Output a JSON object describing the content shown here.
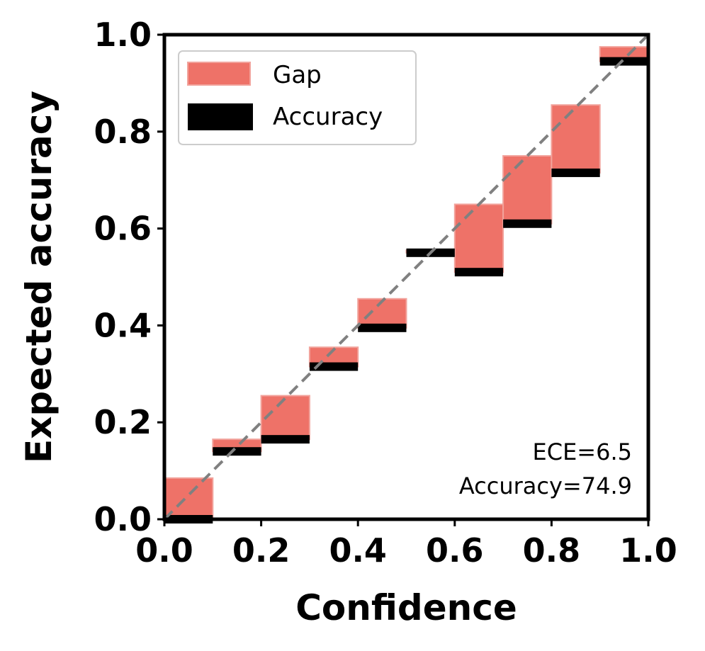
{
  "chart_data": {
    "type": "bar",
    "title": "",
    "xlabel": "Confidence",
    "ylabel": "Expected accuracy",
    "xlim": [
      0,
      1
    ],
    "ylim": [
      0,
      1
    ],
    "xticks": [
      "0.0",
      "0.2",
      "0.4",
      "0.6",
      "0.8",
      "1.0"
    ],
    "yticks": [
      "0.0",
      "0.2",
      "0.4",
      "0.6",
      "0.8",
      "1.0"
    ],
    "bins": [
      {
        "x_start": 0.0,
        "x_end": 0.1,
        "expected": 0.085,
        "accuracy": 0.0
      },
      {
        "x_start": 0.1,
        "x_end": 0.2,
        "expected": 0.165,
        "accuracy": 0.14
      },
      {
        "x_start": 0.2,
        "x_end": 0.3,
        "expected": 0.255,
        "accuracy": 0.165
      },
      {
        "x_start": 0.3,
        "x_end": 0.4,
        "expected": 0.355,
        "accuracy": 0.315
      },
      {
        "x_start": 0.4,
        "x_end": 0.5,
        "expected": 0.455,
        "accuracy": 0.395
      },
      {
        "x_start": 0.5,
        "x_end": 0.6,
        "expected": 0.555,
        "accuracy": 0.55
      },
      {
        "x_start": 0.6,
        "x_end": 0.7,
        "expected": 0.65,
        "accuracy": 0.51
      },
      {
        "x_start": 0.7,
        "x_end": 0.8,
        "expected": 0.75,
        "accuracy": 0.61
      },
      {
        "x_start": 0.8,
        "x_end": 0.9,
        "expected": 0.855,
        "accuracy": 0.715
      },
      {
        "x_start": 0.9,
        "x_end": 1.0,
        "expected": 0.975,
        "accuracy": 0.945
      }
    ],
    "legend": {
      "placement": "upper-left",
      "entries": [
        {
          "label": "Gap",
          "color": "#ee7268"
        },
        {
          "label": "Accuracy",
          "color": "#000000"
        }
      ]
    },
    "diagonal": {
      "from": [
        0,
        0
      ],
      "to": [
        1,
        1
      ],
      "color": "#808080",
      "style": "dashed"
    },
    "annotations": [
      "ECE=6.5",
      "Accuracy=74.9"
    ],
    "grid": false
  }
}
